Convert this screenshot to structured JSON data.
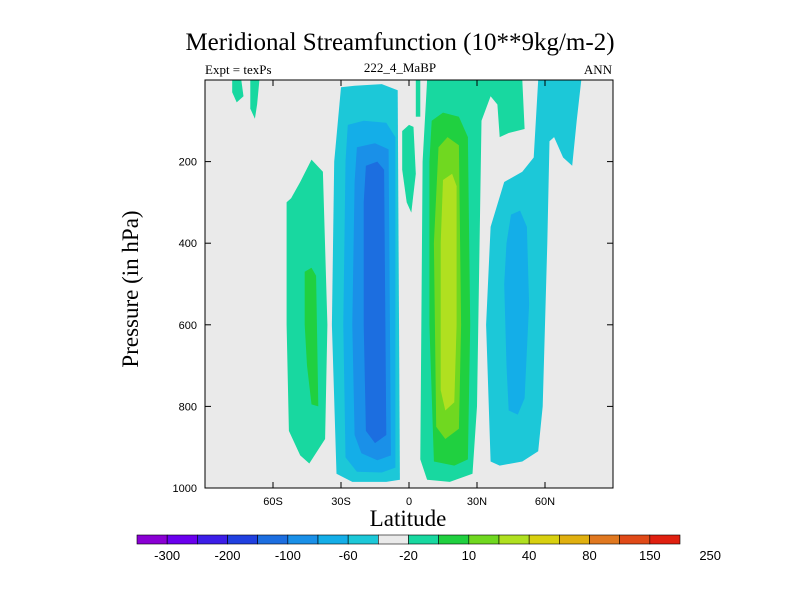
{
  "chart_data": {
    "type": "contour",
    "title": "Meridional Streamfunction (10**9kg/m-2)",
    "subtitle_left": "Expt = texPs",
    "subtitle_center": "222_4_MaBP",
    "subtitle_right": "ANN",
    "xlabel": "Latitude",
    "ylabel": "Pressure (in hPa)",
    "xlim": [
      -90,
      90
    ],
    "ylim": [
      1000,
      0
    ],
    "x_ticks": [
      {
        "value": -60,
        "label": "60S"
      },
      {
        "value": -30,
        "label": "30S"
      },
      {
        "value": 0,
        "label": "0"
      },
      {
        "value": 30,
        "label": "30N"
      },
      {
        "value": 60,
        "label": "60N"
      }
    ],
    "y_ticks": [
      {
        "value": 200,
        "label": "200"
      },
      {
        "value": 400,
        "label": "400"
      },
      {
        "value": 600,
        "label": "600"
      },
      {
        "value": 800,
        "label": "800"
      },
      {
        "value": 1000,
        "label": "1000"
      }
    ],
    "colorbar": {
      "labels": [
        "-300",
        "-200",
        "-100",
        "-60",
        "-20",
        "10",
        "40",
        "80",
        "150",
        "250"
      ],
      "colors": [
        "#8a00d4",
        "#6a00ee",
        "#3c1ee8",
        "#2040e0",
        "#1c6ee0",
        "#1a90e8",
        "#14aee8",
        "#1cc8d8",
        "#eaeaea",
        "#18d8a0",
        "#20d040",
        "#70d820",
        "#b0e020",
        "#d8d010",
        "#e0b010",
        "#e07820",
        "#e04a18",
        "#e02010"
      ]
    },
    "regions": [
      {
        "color": "#1cc8d8",
        "pts": [
          [
            -30,
            18
          ],
          [
            -24,
            14
          ],
          [
            -12,
            10
          ],
          [
            -5,
            25
          ],
          [
            -4,
            980
          ],
          [
            -10,
            985
          ],
          [
            -25,
            985
          ],
          [
            -32,
            965
          ],
          [
            -34,
            600
          ],
          [
            -33,
            200
          ]
        ]
      },
      {
        "color": "#14aee8",
        "pts": [
          [
            -27,
            110
          ],
          [
            -20,
            100
          ],
          [
            -10,
            105
          ],
          [
            -6,
            140
          ],
          [
            -6,
            950
          ],
          [
            -12,
            962
          ],
          [
            -23,
            960
          ],
          [
            -28,
            925
          ],
          [
            -29,
            600
          ],
          [
            -28,
            200
          ]
        ]
      },
      {
        "color": "#1a90e8",
        "pts": [
          [
            -23,
            165
          ],
          [
            -15,
            155
          ],
          [
            -9,
            170
          ],
          [
            -8,
            920
          ],
          [
            -14,
            932
          ],
          [
            -21,
            915
          ],
          [
            -24,
            870
          ],
          [
            -25,
            600
          ],
          [
            -24,
            250
          ]
        ]
      },
      {
        "color": "#1c6ee0",
        "pts": [
          [
            -19,
            210
          ],
          [
            -14,
            200
          ],
          [
            -11,
            220
          ],
          [
            -10,
            870
          ],
          [
            -15,
            890
          ],
          [
            -19,
            860
          ],
          [
            -20,
            600
          ],
          [
            -20,
            300
          ]
        ]
      },
      {
        "color": "#18d8a0",
        "pts": [
          [
            -54,
            300
          ],
          [
            -52,
            290
          ],
          [
            -48,
            250
          ],
          [
            -43,
            195
          ],
          [
            -38,
            225
          ],
          [
            -36,
            600
          ],
          [
            -37,
            880
          ],
          [
            -44,
            940
          ],
          [
            -48,
            920
          ],
          [
            -53,
            860
          ],
          [
            -54,
            600
          ]
        ]
      },
      {
        "color": "#18d8a0",
        "pts": [
          [
            -53,
            295
          ],
          [
            -46,
            290
          ],
          [
            -43,
            300
          ],
          [
            -43,
            290
          ],
          [
            -54,
            300
          ]
        ]
      },
      {
        "color": "#20d040",
        "pts": [
          [
            -46,
            470
          ],
          [
            -43,
            460
          ],
          [
            -41,
            480
          ],
          [
            -40,
            800
          ],
          [
            -43,
            795
          ],
          [
            -45,
            700
          ],
          [
            -46,
            600
          ]
        ]
      },
      {
        "color": "#18d8a0",
        "pts": [
          [
            -78,
            0
          ],
          [
            -74,
            0
          ],
          [
            -73,
            40
          ],
          [
            -76,
            55
          ],
          [
            -78,
            30
          ]
        ]
      },
      {
        "color": "#18d8a0",
        "pts": [
          [
            -70,
            0
          ],
          [
            -66,
            0
          ],
          [
            -67,
            60
          ],
          [
            -68,
            95
          ],
          [
            -70,
            70
          ]
        ]
      },
      {
        "color": "#18d8a0",
        "pts": [
          [
            8,
            0
          ],
          [
            50,
            0
          ],
          [
            51,
            120
          ],
          [
            44,
            130
          ],
          [
            40,
            140
          ],
          [
            39,
            60
          ],
          [
            36,
            40
          ],
          [
            32,
            100
          ],
          [
            30,
            800
          ],
          [
            28,
            965
          ],
          [
            18,
            985
          ],
          [
            8,
            980
          ],
          [
            5,
            930
          ],
          [
            6,
            200
          ]
        ]
      },
      {
        "color": "#18d8a0",
        "pts": [
          [
            -3,
            125
          ],
          [
            0,
            110
          ],
          [
            2,
            115
          ],
          [
            3,
            230
          ],
          [
            1,
            325
          ],
          [
            -1,
            300
          ],
          [
            -3,
            220
          ]
        ]
      },
      {
        "color": "#18d8a0",
        "pts": [
          [
            3,
            0
          ],
          [
            5,
            0
          ],
          [
            5,
            90
          ],
          [
            3,
            90
          ]
        ]
      },
      {
        "color": "#20d040",
        "pts": [
          [
            10,
            100
          ],
          [
            15,
            80
          ],
          [
            22,
            90
          ],
          [
            26,
            140
          ],
          [
            27,
            600
          ],
          [
            26,
            930
          ],
          [
            20,
            945
          ],
          [
            11,
            935
          ],
          [
            9,
            600
          ],
          [
            9,
            200
          ]
        ]
      },
      {
        "color": "#70d820",
        "pts": [
          [
            13,
            165
          ],
          [
            17,
            140
          ],
          [
            22,
            160
          ],
          [
            23,
            600
          ],
          [
            22,
            855
          ],
          [
            16,
            880
          ],
          [
            12,
            850
          ],
          [
            11,
            400
          ]
        ]
      },
      {
        "color": "#b0e020",
        "pts": [
          [
            15,
            245
          ],
          [
            19,
            230
          ],
          [
            21,
            260
          ],
          [
            21,
            600
          ],
          [
            20,
            790
          ],
          [
            16,
            810
          ],
          [
            14,
            760
          ],
          [
            14,
            400
          ]
        ]
      },
      {
        "color": "#1cc8d8",
        "pts": [
          [
            57,
            0
          ],
          [
            76,
            0
          ],
          [
            74,
            100
          ],
          [
            72,
            210
          ],
          [
            68,
            190
          ],
          [
            64,
            140
          ],
          [
            62,
            150
          ],
          [
            61,
            400
          ],
          [
            59,
            800
          ],
          [
            57,
            910
          ],
          [
            50,
            935
          ],
          [
            40,
            945
          ],
          [
            36,
            935
          ],
          [
            34,
            600
          ],
          [
            36,
            360
          ],
          [
            42,
            250
          ],
          [
            50,
            225
          ],
          [
            55,
            190
          ]
        ]
      },
      {
        "color": "#14aee8",
        "pts": [
          [
            45,
            330
          ],
          [
            49,
            320
          ],
          [
            52,
            360
          ],
          [
            53,
            550
          ],
          [
            51,
            780
          ],
          [
            48,
            820
          ],
          [
            44,
            810
          ],
          [
            43,
            700
          ],
          [
            42,
            500
          ],
          [
            43,
            400
          ]
        ]
      }
    ]
  }
}
